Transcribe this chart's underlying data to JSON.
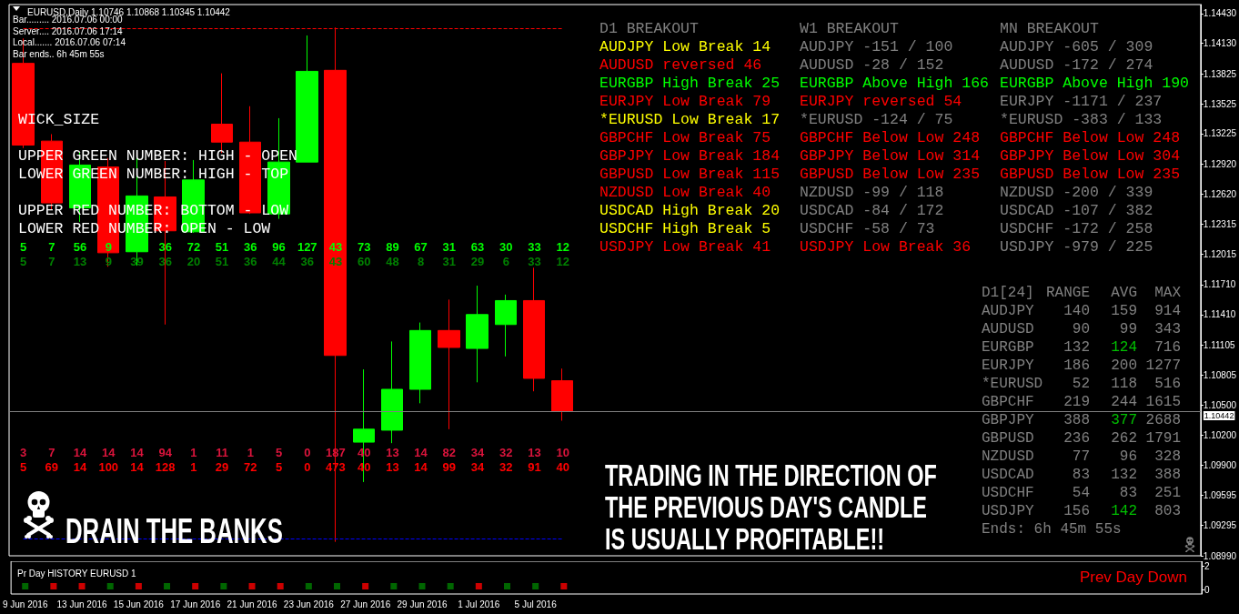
{
  "chart_data": [
    {
      "type": "candlestick",
      "title": "EURUSD,Daily 1.10746 1.10868 1.10345 1.10442",
      "categories": [
        null,
        null,
        null,
        null,
        null,
        null,
        null,
        null,
        null,
        null,
        null,
        null,
        null,
        null,
        null,
        null,
        null,
        null,
        null,
        null,
        null,
        null,
        null,
        null,
        null,
        null,
        null,
        null,
        null,
        null,
        null,
        null,
        null,
        null,
        null,
        null,
        null,
        null,
        null,
        null,
        null,
        null
      ],
      "ohlc": [
        [
          1.1393,
          1.1418,
          1.1308,
          1.1311
        ],
        [
          1.1315,
          1.1322,
          1.1246,
          1.1253
        ],
        [
          1.1248,
          1.1304,
          1.1234,
          1.1291
        ],
        [
          1.1289,
          1.1298,
          1.1189,
          1.1203
        ],
        [
          1.1204,
          1.1299,
          1.119,
          1.126
        ],
        [
          1.1259,
          1.1295,
          1.1131,
          1.1225
        ],
        [
          1.1224,
          1.1296,
          1.1223,
          1.1276
        ],
        [
          1.1332,
          1.1383,
          1.1303,
          1.1314
        ],
        [
          1.1314,
          1.135,
          1.1242,
          1.1243
        ],
        [
          1.1242,
          1.1338,
          1.1237,
          1.1294
        ],
        [
          1.1294,
          1.1421,
          1.1294,
          1.1385
        ],
        [
          1.1386,
          1.1429,
          1.0913,
          1.11
        ],
        [
          1.1013,
          1.1086,
          1.0973,
          1.1026
        ],
        [
          1.1025,
          1.1114,
          1.1012,
          1.1066
        ],
        [
          1.1066,
          1.1133,
          1.1052,
          1.1125
        ],
        [
          1.1125,
          1.1156,
          1.1026,
          1.1108
        ],
        [
          1.1107,
          1.117,
          1.1073,
          1.1141
        ],
        [
          1.1131,
          1.1161,
          1.1099,
          1.1155
        ],
        [
          1.1155,
          1.1188,
          1.1064,
          1.1077
        ],
        [
          1.10746,
          1.10868,
          1.10345,
          1.10442
        ],
        null,
        null,
        null,
        null,
        null,
        null,
        null,
        null,
        null,
        null,
        null,
        null,
        null,
        null,
        null,
        null,
        null,
        null,
        null,
        null,
        null,
        null
      ],
      "colors": [
        "#ff0000",
        "#ff0000",
        "#00ff00",
        "#ff0000",
        "#00ff00",
        "#ff0000",
        "#00ff00",
        "#ff0000",
        "#ff0000",
        "#00ff00",
        "#00ff00",
        "#ff0000",
        "#00ff00",
        "#00ff00",
        "#00ff00",
        "#ff0000",
        "#00ff00",
        "#00ff00",
        "#ff0000",
        "#ff0000",
        null,
        null,
        null,
        null,
        null,
        null,
        null,
        null,
        null,
        null,
        null,
        null,
        null,
        null,
        null,
        null,
        null,
        null,
        null,
        null,
        null,
        null
      ],
      "ylim": [
        1.0899,
        1.1452
      ],
      "yticks": [
        {
          "value": 1.1443,
          "label": "1.14430"
        },
        {
          "value": 1.1413,
          "label": "1.14130"
        },
        {
          "value": 1.13825,
          "label": "1.13825"
        },
        {
          "value": 1.13525,
          "label": "1.13525"
        },
        {
          "value": 1.13225,
          "label": "1.13225"
        },
        {
          "value": 1.1292,
          "label": "1.12920"
        },
        {
          "value": 1.1262,
          "label": "1.12620"
        },
        {
          "value": 1.12315,
          "label": "1.12315"
        },
        {
          "value": 1.12015,
          "label": "1.12015"
        },
        {
          "value": 1.1171,
          "label": "1.11710"
        },
        {
          "value": 1.1141,
          "label": "1.11410"
        },
        {
          "value": 1.11105,
          "label": "1.11105"
        },
        {
          "value": 1.10805,
          "label": "1.10805"
        },
        {
          "value": 1.105,
          "label": "1.10500"
        },
        {
          "value": 1.102,
          "label": "1.10200"
        },
        {
          "value": 1.099,
          "label": "1.09900"
        },
        {
          "value": 1.09595,
          "label": "1.09595"
        },
        {
          "value": 1.09295,
          "label": "1.09295"
        },
        {
          "value": 1.0899,
          "label": "1.08990"
        }
      ],
      "tick_labels": "y",
      "ref_lines": [
        {
          "axis": "y",
          "value": 1.1428,
          "color": "#ff0000",
          "line_style": "dashed"
        },
        {
          "axis": "y",
          "value": 1.0916,
          "color": "#0000ff",
          "line_style": "dashed"
        },
        {
          "axis": "y",
          "value": 1.10442,
          "label": "1.10442",
          "color": "#808080"
        }
      ],
      "annotations": [
        "Bar......... 2016.07.06 00:00",
        "Server.... 2016.07.06 17:14",
        "Local....... 2016.07.06 07:14",
        "Bar ends.. 6h 45m 55s",
        "WICK_SIZE",
        "UPPER GREEN NUMBER: HIGH - OPEN",
        "LOWER GREEN NUMBER: HIGH - TOP",
        "UPPER RED NUMBER: BOTTOM - LOW",
        "LOWER RED NUMBER: OPEN - LOW",
        "DRAIN THE BANKS",
        "TRADING IN THE DIRECTION OF",
        "THE PREVIOUS DAY'S CANDLE",
        "IS USUALLY PROFITABLE!!",
        "5",
        "7",
        "56",
        "9",
        "36",
        "72",
        "51",
        "36",
        "96",
        "127",
        "43",
        "73",
        "89",
        "67",
        "31",
        "63",
        "30",
        "33",
        "12",
        "5",
        "7",
        "13",
        "9",
        "39",
        "36",
        "20",
        "51",
        "36",
        "44",
        "36",
        "43",
        "60",
        "48",
        "8",
        "31",
        "29",
        "6",
        "33",
        "12",
        "3",
        "7",
        "14",
        "14",
        "14",
        "94",
        "1",
        "11",
        "1",
        "5",
        "0",
        "187",
        "40",
        "13",
        "14",
        "82",
        "34",
        "32",
        "13",
        "10",
        "5",
        "69",
        "14",
        "100",
        "14",
        "128",
        "1",
        "29",
        "72",
        "5",
        "0",
        "473",
        "40",
        "13",
        "14",
        "99",
        "34",
        "32",
        "91",
        "40"
      ]
    },
    {
      "type": "other",
      "title": "D1 BREAKOUT",
      "annotations": [
        "AUDJPY Low Break 14",
        "AUDUSD reversed 46",
        "EURGBP High Break 25",
        "EURJPY Low Break 79",
        "*EURUSD Low Break 17",
        "GBPCHF Low Break 75",
        "GBPJPY Low Break 184",
        "GBPUSD Low Break 115",
        "NZDUSD Low Break 40",
        "USDCAD High Break 20",
        "USDCHF High Break 5",
        "USDJPY Low Break 41"
      ],
      "colors": [
        "#ffff00",
        "#ff0000",
        "#00ff00",
        "#ff0000",
        "#ffff00",
        "#ff0000",
        "#ff0000",
        "#ff0000",
        "#ff0000",
        "#ffff00",
        "#ffff00",
        "#ff0000"
      ]
    },
    {
      "type": "other",
      "title": "W1 BREAKOUT",
      "annotations": [
        "AUDJPY -151 / 100",
        "AUDUSD -28 / 152",
        "EURGBP Above High 166",
        "EURJPY reversed 54",
        "*EURUSD -124 / 75",
        "GBPCHF Below Low 248",
        "GBPJPY Below Low 314",
        "GBPUSD Below Low 235",
        "NZDUSD -99 / 118",
        "USDCAD -84 / 172",
        "USDCHF -58 / 73",
        "USDJPY Low Break 36"
      ],
      "colors": [
        "#808080",
        "#808080",
        "#00ff00",
        "#ff0000",
        "#808080",
        "#ff0000",
        "#ff0000",
        "#ff0000",
        "#808080",
        "#808080",
        "#808080",
        "#ff0000"
      ]
    },
    {
      "type": "other",
      "title": "MN BREAKOUT",
      "annotations": [
        "AUDJPY -605 / 309",
        "AUDUSD -172 / 274",
        "EURGBP Above High 190",
        "EURJPY -1171 / 237",
        "*EURUSD -383 / 133",
        "GBPCHF Below Low 248",
        "GBPJPY Below Low 304",
        "GBPUSD Below Low 235",
        "NZDUSD -200 / 339",
        "USDCAD -107 / 382",
        "USDCHF -172 / 258",
        "USDJPY -979 / 225"
      ],
      "colors": [
        "#808080",
        "#808080",
        "#00ff00",
        "#808080",
        "#808080",
        "#ff0000",
        "#ff0000",
        "#ff0000",
        "#808080",
        "#808080",
        "#808080",
        "#808080"
      ]
    },
    {
      "type": "other",
      "title": "D1[24] RANGE AVG MAX",
      "annotations": [
        "AUDJPY 140 159 914",
        "AUDUSD 90 99 343",
        "EURGBP 132 124 716",
        "EURJPY 186 200 1277",
        "*EURUSD 52 118 516",
        "GBPCHF 219 244 1615",
        "GBPJPY 388 377 2688",
        "GBPUSD 236 262 1791",
        "NZDUSD 77 96 328",
        "USDCAD 83 132 388",
        "USDCHF 54 83 251",
        "USDJPY 156 142 803",
        "Ends: 6h 45m 55s"
      ]
    },
    {
      "type": "scatter",
      "title": "Pr Day HISTORY EURUSD 1",
      "categories": [
        "9 Jun 2016",
        null,
        "13 Jun 2016",
        null,
        "15 Jun 2016",
        null,
        "17 Jun 2016",
        null,
        "21 Jun 2016",
        null,
        "23 Jun 2016",
        null,
        "27 Jun 2016",
        null,
        "29 Jun 2016",
        null,
        "1 Jul 2016",
        null,
        "5 Jul 2016",
        null,
        null,
        null,
        null,
        null,
        null,
        null,
        null,
        null,
        null,
        null,
        null,
        null,
        null,
        null,
        null,
        null,
        null,
        null,
        null,
        null,
        null,
        null
      ],
      "values": [
        0.3,
        0.3,
        0.3,
        0.3,
        0.3,
        0.3,
        0.3,
        0.3,
        0.3,
        0.3,
        0.3,
        0.3,
        0.3,
        0.3,
        0.3,
        0.3,
        0.3,
        0.3,
        0.3,
        0.3,
        null,
        null,
        null,
        null,
        null,
        null,
        null,
        null,
        null,
        null,
        null,
        null,
        null,
        null,
        null,
        null,
        null,
        null,
        null,
        null,
        null,
        null
      ],
      "colors": [
        "#008000",
        "#ff0000",
        "#ff0000",
        "#008000",
        "#ff0000",
        "#008000",
        "#ff0000",
        "#008000",
        "#ff0000",
        "#ff0000",
        "#008000",
        "#008000",
        "#ff0000",
        "#008000",
        "#008000",
        "#008000",
        "#ff0000",
        "#008000",
        "#008000",
        "#ff0000",
        null,
        null,
        null,
        null,
        null,
        null,
        null,
        null,
        null,
        null,
        null,
        null,
        null,
        null,
        null,
        null,
        null,
        null,
        null,
        null,
        null,
        null
      ],
      "marker": "square",
      "ylim": [
        -0.35,
        2.4
      ],
      "yticks": [
        0,
        2
      ],
      "annotations": [
        "Prev Day Down"
      ]
    }
  ]
}
